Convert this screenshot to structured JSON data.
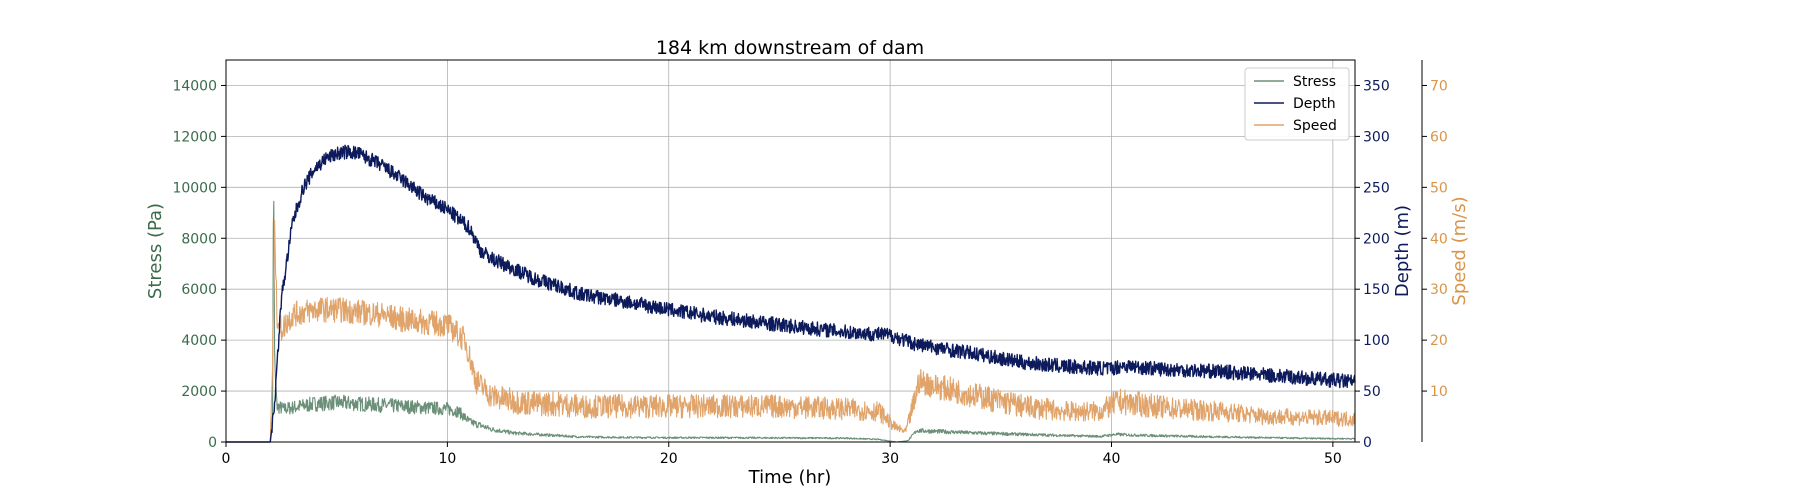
{
  "chart_data": {
    "type": "line",
    "title": "184 km downstream of dam",
    "xlabel": "Time (hr)",
    "xlim": [
      0,
      51
    ],
    "xticks": [
      0,
      10,
      20,
      30,
      40,
      50
    ],
    "grid": true,
    "legend_position": "top-right",
    "axes": {
      "stress": {
        "label": "Stress (Pa)",
        "position": "left",
        "color": "#3a6b4a",
        "ylim": [
          0,
          15000
        ],
        "ticks": [
          0,
          2000,
          4000,
          6000,
          8000,
          10000,
          12000,
          14000
        ]
      },
      "depth": {
        "label": "Depth (m)",
        "position": "right",
        "color": "#0d1b5c",
        "ylim": [
          0,
          375
        ],
        "ticks": [
          0,
          50,
          100,
          150,
          200,
          250,
          300,
          350
        ]
      },
      "speed": {
        "label": "Speed (m/s)",
        "position": "right-outer",
        "color": "#d9954a",
        "ylim": [
          0,
          75
        ],
        "ticks": [
          10,
          20,
          30,
          40,
          50,
          60,
          70
        ]
      }
    },
    "series": [
      {
        "name": "Stress",
        "axis": "stress",
        "color": "#6b8f78",
        "noise": 300,
        "x": [
          0,
          2.0,
          2.1,
          2.15,
          2.2,
          2.3,
          2.6,
          3,
          4,
          5,
          6,
          7,
          8,
          9,
          10,
          10.5,
          11,
          12,
          13,
          14,
          15,
          16,
          18,
          20,
          22,
          25,
          28,
          29.5,
          30.3,
          30.8,
          31.2,
          32,
          34,
          36,
          38,
          39.5,
          40.2,
          41,
          43,
          45,
          47,
          49,
          51
        ],
        "y": [
          0,
          0,
          800,
          10600,
          3000,
          1400,
          1300,
          1350,
          1500,
          1550,
          1500,
          1450,
          1400,
          1350,
          1300,
          1200,
          800,
          500,
          350,
          300,
          250,
          200,
          180,
          170,
          170,
          160,
          150,
          100,
          0,
          50,
          450,
          420,
          350,
          300,
          250,
          220,
          300,
          270,
          230,
          200,
          170,
          140,
          130
        ]
      },
      {
        "name": "Depth",
        "axis": "depth",
        "color": "#0d1b5c",
        "noise": 7,
        "x": [
          0,
          2.0,
          2.2,
          2.5,
          3,
          3.5,
          4,
          4.5,
          5,
          5.5,
          6,
          7,
          8,
          9,
          10,
          11,
          11.5,
          12,
          13,
          14,
          15,
          16,
          18,
          20,
          22,
          25,
          28,
          30,
          30.5,
          31,
          32,
          34,
          36,
          38,
          40,
          40.5,
          42,
          45,
          48,
          51
        ],
        "y": [
          0,
          0,
          40,
          140,
          215,
          250,
          268,
          278,
          283,
          285,
          283,
          272,
          257,
          240,
          228,
          210,
          188,
          180,
          170,
          160,
          153,
          145,
          138,
          130,
          123,
          115,
          108,
          105,
          101,
          97,
          93,
          86,
          78,
          74,
          72,
          75,
          72,
          69,
          64,
          59
        ]
      },
      {
        "name": "Speed",
        "axis": "speed",
        "color": "#e0a36a",
        "noise": 2.5,
        "x": [
          0,
          2.0,
          2.1,
          2.2,
          2.3,
          2.5,
          3,
          4,
          5,
          6,
          7,
          8,
          9,
          10,
          10.8,
          11.3,
          12,
          13,
          14,
          15,
          16,
          18,
          20,
          22,
          25,
          28,
          29.5,
          30.2,
          30.7,
          31.1,
          31.3,
          32,
          34,
          36,
          38,
          39.5,
          40.3,
          41,
          43,
          45,
          47,
          49,
          51
        ],
        "y": [
          0,
          0,
          15,
          42,
          25,
          22,
          25,
          26,
          26,
          25.5,
          25,
          24,
          23.5,
          23,
          20,
          12,
          9,
          8,
          7.5,
          7.5,
          7,
          7,
          7,
          7,
          7,
          6.5,
          6,
          3,
          2,
          8,
          12,
          11,
          9,
          7,
          6,
          6,
          8,
          7.5,
          6.5,
          6,
          5,
          4.8,
          4.5
        ]
      }
    ]
  }
}
